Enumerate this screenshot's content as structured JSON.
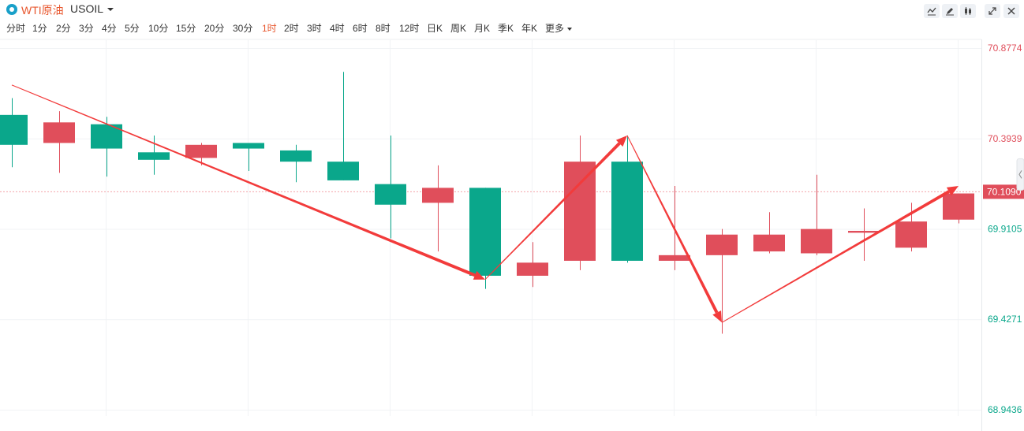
{
  "header": {
    "title": "WTI原油",
    "symbol": "USOIL"
  },
  "toolbar": {
    "buttons": [
      "line-tool",
      "draw-tool",
      "candle-style",
      "fullscreen",
      "close"
    ]
  },
  "intervals": {
    "items": [
      "分时",
      "1分",
      "2分",
      "3分",
      "4分",
      "5分",
      "10分",
      "15分",
      "20分",
      "30分",
      "1时",
      "2时",
      "3时",
      "4时",
      "6时",
      "8时",
      "12时",
      "日K",
      "周K",
      "月K",
      "季K",
      "年K",
      "更多"
    ],
    "active": "1时"
  },
  "colors": {
    "up": "#e04e5b",
    "down": "#0aa78b",
    "arrow": "#f23b3b",
    "active_interval": "#e8572e"
  },
  "chart_data": {
    "type": "candlestick",
    "y_axis": {
      "ticks": [
        70.8774,
        70.3939,
        69.9105,
        69.4271,
        68.9436
      ],
      "tick_labels": [
        "70.8774",
        "70.3939",
        "69.9105",
        "69.4271",
        "68.9436"
      ],
      "tick_colors": [
        "#e04e5b",
        "#e04e5b",
        "#0aa78b",
        "#0aa78b",
        "#0aa78b"
      ],
      "range": [
        68.9436,
        70.8774
      ]
    },
    "current_price": {
      "value": 70.109,
      "label": "70.1090"
    },
    "candles": [
      {
        "o": 70.52,
        "c": 70.36,
        "h": 70.61,
        "l": 70.24
      },
      {
        "o": 70.37,
        "c": 70.48,
        "h": 70.54,
        "l": 70.21
      },
      {
        "o": 70.47,
        "c": 70.34,
        "h": 70.51,
        "l": 70.19
      },
      {
        "o": 70.32,
        "c": 70.28,
        "h": 70.41,
        "l": 70.2
      },
      {
        "o": 70.29,
        "c": 70.36,
        "h": 70.37,
        "l": 70.25
      },
      {
        "o": 70.37,
        "c": 70.34,
        "h": 70.36,
        "l": 70.22
      },
      {
        "o": 70.33,
        "c": 70.27,
        "h": 70.36,
        "l": 70.16
      },
      {
        "o": 70.27,
        "c": 70.17,
        "h": 70.75,
        "l": 70.17
      },
      {
        "o": 70.15,
        "c": 70.04,
        "h": 70.41,
        "l": 69.86
      },
      {
        "o": 70.05,
        "c": 70.13,
        "h": 70.25,
        "l": 69.79
      },
      {
        "o": 70.13,
        "c": 69.66,
        "h": 70.13,
        "l": 69.59
      },
      {
        "o": 69.66,
        "c": 69.73,
        "h": 69.84,
        "l": 69.6
      },
      {
        "o": 69.74,
        "c": 70.27,
        "h": 70.41,
        "l": 69.69
      },
      {
        "o": 70.27,
        "c": 69.74,
        "h": 70.41,
        "l": 69.73
      },
      {
        "o": 69.74,
        "c": 69.77,
        "h": 70.14,
        "l": 69.69
      },
      {
        "o": 69.77,
        "c": 69.88,
        "h": 69.91,
        "l": 69.35
      },
      {
        "o": 69.79,
        "c": 69.88,
        "h": 70.0,
        "l": 69.78
      },
      {
        "o": 69.78,
        "c": 69.91,
        "h": 70.2,
        "l": 69.77
      },
      {
        "o": 69.89,
        "c": 69.9,
        "h": 70.02,
        "l": 69.74
      },
      {
        "o": 69.81,
        "c": 69.95,
        "h": 70.05,
        "l": 69.79
      },
      {
        "o": 69.96,
        "c": 70.1,
        "h": 70.1,
        "l": 69.94
      }
    ],
    "annotations": [
      {
        "type": "arrow",
        "from": [
          0,
          70.68
        ],
        "to": [
          10,
          69.64
        ]
      },
      {
        "type": "arrow",
        "from": [
          10,
          69.64
        ],
        "to": [
          13,
          70.41
        ]
      },
      {
        "type": "arrow",
        "from": [
          13,
          70.41
        ],
        "to": [
          15,
          69.41
        ]
      },
      {
        "type": "arrow",
        "from": [
          15,
          69.41
        ],
        "to": [
          20,
          70.14
        ]
      }
    ]
  }
}
